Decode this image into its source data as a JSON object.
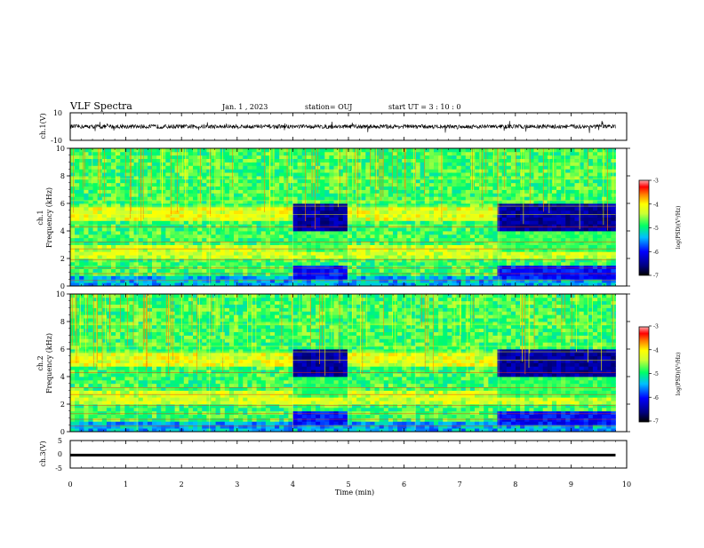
{
  "header": {
    "title": "VLF Spectra",
    "date": "Jan. 1 , 2023",
    "station": "station= OUJ",
    "start": "start UT = 3 : 10 : 0"
  },
  "colors": {
    "background": "#ffffff",
    "axis": "#000000",
    "trace": "#000000",
    "colormap": [
      "#000066",
      "#0000ff",
      "#00bfff",
      "#00ff66",
      "#ccff33",
      "#ffff00",
      "#ff8000",
      "#ff0000",
      "#ffaaaa"
    ]
  },
  "chart_data": [
    {
      "type": "line",
      "panel": "ch1-waveform",
      "ylabel": "ch.1(V)",
      "ylim": [
        -10,
        10
      ],
      "yticks": [
        10,
        -10
      ],
      "xlim": [
        0,
        10
      ],
      "x_end_min": 9.8,
      "noise_level_V": 1.5
    },
    {
      "type": "heatmap",
      "panel": "ch1-spectrogram",
      "ylabel_line1": "ch.1",
      "ylabel_line2": "Frequency (kHz)",
      "ylim": [
        0,
        10
      ],
      "yticks": [
        0,
        2,
        4,
        6,
        8,
        10
      ],
      "xlim": [
        0,
        10
      ],
      "x_end_min": 9.8,
      "segments_min": [
        0,
        1.2,
        2.5,
        4.0,
        5.0,
        6.2,
        7.7,
        9.8
      ],
      "quiet_intervals_min": [
        [
          4.0,
          5.0
        ],
        [
          7.7,
          9.8
        ]
      ],
      "quiet_band_kHz": [
        4,
        6
      ],
      "colorbar": {
        "label": "log(PSD)(V²/Hz)",
        "range": [
          -7,
          -3
        ],
        "ticks": [
          -3,
          -4,
          -5,
          -6,
          -7
        ]
      }
    },
    {
      "type": "heatmap",
      "panel": "ch2-spectrogram",
      "ylabel_line1": "ch.2",
      "ylabel_line2": "Frequency (kHz)",
      "ylim": [
        0,
        10
      ],
      "yticks": [
        0,
        2,
        4,
        6,
        8,
        10
      ],
      "xlim": [
        0,
        10
      ],
      "x_end_min": 9.8,
      "segments_min": [
        0,
        1.2,
        2.5,
        4.0,
        5.0,
        6.2,
        7.7,
        9.8
      ],
      "quiet_intervals_min": [
        [
          4.0,
          5.0
        ],
        [
          7.7,
          9.8
        ]
      ],
      "quiet_band_kHz": [
        4,
        6
      ],
      "colorbar": {
        "label": "log(PSD)(V²/Hz)",
        "range": [
          -7,
          -3
        ],
        "ticks": [
          -3,
          -4,
          -5,
          -6,
          -7
        ]
      }
    },
    {
      "type": "line",
      "panel": "ch3-waveform",
      "ylabel": "ch.3(V)",
      "ylim": [
        -5,
        5
      ],
      "yticks": [
        5,
        0,
        -5
      ],
      "xlim": [
        0,
        10
      ],
      "x_end_min": 9.8,
      "constant_value_V": -0.3,
      "xlabel": "Time (min)",
      "xticks": [
        0,
        1,
        2,
        3,
        4,
        5,
        6,
        7,
        8,
        9,
        10
      ]
    }
  ]
}
